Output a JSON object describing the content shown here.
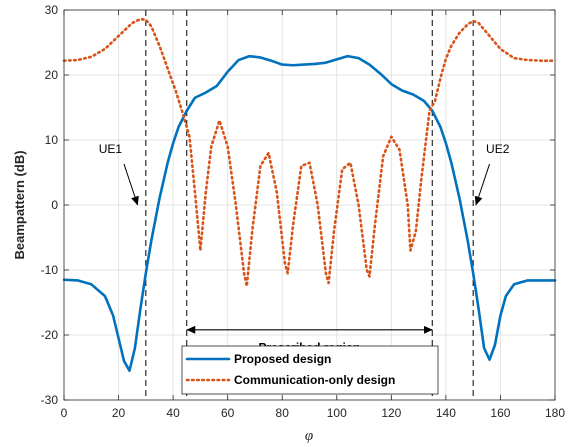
{
  "chart_data": {
    "type": "line",
    "xlabel": "φ",
    "ylabel": "Beampattern (dB)",
    "xlim": [
      0,
      180
    ],
    "ylim": [
      -30,
      30
    ],
    "xticks": [
      0,
      20,
      40,
      60,
      80,
      100,
      120,
      140,
      160,
      180
    ],
    "yticks": [
      -30,
      -20,
      -10,
      0,
      10,
      20,
      30
    ],
    "grid": true,
    "legend_position": "bottom-center",
    "series": [
      {
        "name": "Proposed design",
        "color": "#0072BD",
        "style": "solid",
        "x": [
          0,
          5,
          10,
          15,
          18,
          20,
          22,
          24,
          26,
          28,
          30,
          32,
          35,
          38,
          40,
          42,
          45,
          48,
          52,
          56,
          60,
          64,
          68,
          72,
          76,
          80,
          84,
          88,
          92,
          96,
          100,
          104,
          108,
          112,
          116,
          120,
          124,
          128,
          132,
          135,
          138,
          140,
          142,
          145,
          148,
          150,
          152,
          154,
          156,
          158,
          160,
          162,
          165,
          170,
          175,
          180
        ],
        "y": [
          -11.5,
          -11.6,
          -12.2,
          -14.0,
          -17.0,
          -20.5,
          -24.0,
          -25.5,
          -22.0,
          -16.0,
          -10.5,
          -5.5,
          1.0,
          6.5,
          9.5,
          12.0,
          14.5,
          16.5,
          17.3,
          18.3,
          20.5,
          22.3,
          22.9,
          22.7,
          22.2,
          21.6,
          21.5,
          21.6,
          21.7,
          21.9,
          22.4,
          22.9,
          22.6,
          21.6,
          20.2,
          18.6,
          17.6,
          17.0,
          16.0,
          14.5,
          12.0,
          9.5,
          6.5,
          1.0,
          -5.5,
          -10.5,
          -16.0,
          -22.0,
          -23.8,
          -21.5,
          -17.0,
          -14.0,
          -12.2,
          -11.6,
          -11.6,
          -11.6
        ]
      },
      {
        "name": "Communication-only design",
        "color": "#D95319",
        "style": "dotted",
        "x": [
          0,
          5,
          10,
          15,
          20,
          25,
          28,
          30,
          32,
          35,
          38,
          41,
          44,
          46,
          48,
          50,
          52,
          54,
          57,
          60,
          63,
          66,
          67,
          69,
          72,
          75,
          78,
          81,
          82,
          84,
          87,
          90,
          93,
          96,
          97,
          99,
          102,
          105,
          108,
          111,
          112,
          114,
          117,
          120,
          123,
          126,
          127,
          129,
          131,
          133,
          134,
          136,
          138,
          140,
          142,
          145,
          148,
          150,
          152,
          155,
          160,
          165,
          170,
          175,
          180
        ],
        "y": [
          22.2,
          22.3,
          22.8,
          24.0,
          26.0,
          28.0,
          28.6,
          28.5,
          27.5,
          24.5,
          21.0,
          17.5,
          13.5,
          10.5,
          2.0,
          -7.0,
          2.0,
          9.0,
          13.0,
          9.0,
          0.0,
          -10.5,
          -12.5,
          -4.0,
          6.0,
          8.0,
          2.0,
          -9.0,
          -10.5,
          -3.0,
          6.0,
          6.5,
          0.0,
          -10.5,
          -12.0,
          -4.0,
          5.5,
          6.5,
          0.0,
          -10.0,
          -11.0,
          -3.0,
          7.5,
          10.5,
          8.5,
          0.0,
          -7.0,
          -4.0,
          4.0,
          11.0,
          14.5,
          16.0,
          19.5,
          22.5,
          24.5,
          26.5,
          27.8,
          28.3,
          28.0,
          26.5,
          24.0,
          22.6,
          22.3,
          22.2,
          22.2
        ]
      }
    ],
    "vlines": [
      30,
      45,
      135,
      150
    ],
    "annotations": [
      {
        "label": "UE1",
        "text_x": 17,
        "text_y": 8,
        "arrow_from": [
          22,
          6.3
        ],
        "arrow_to": [
          27,
          0
        ]
      },
      {
        "label": "UE2",
        "text_x": 159,
        "text_y": 8,
        "arrow_from": [
          156,
          6.3
        ],
        "arrow_to": [
          151,
          0
        ]
      },
      {
        "label": "Prescribed region",
        "text_x": 90,
        "text_y": -22.5,
        "arrow_y": -19.2,
        "arrow_from_x": 45,
        "arrow_to_x": 135
      }
    ]
  }
}
